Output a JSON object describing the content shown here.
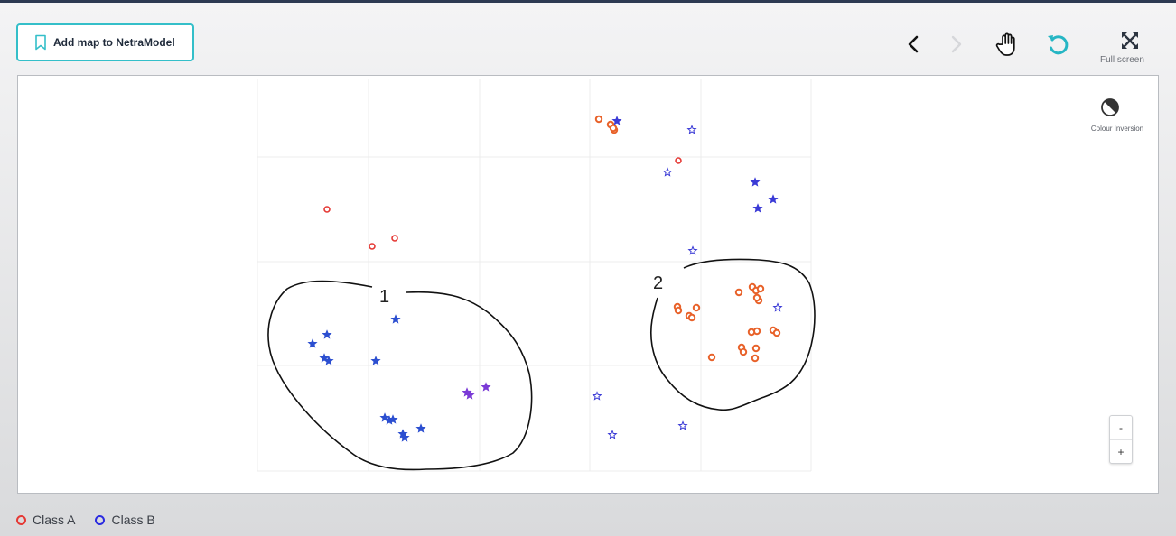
{
  "toolbar": {
    "add_map_label": "Add map to NetraModel",
    "full_screen_label": "Full screen"
  },
  "map": {
    "colour_inversion_label": "Colour Inversion",
    "zoom_out_label": "-",
    "zoom_in_label": "+",
    "region_labels": [
      "1",
      "2"
    ]
  },
  "legend": {
    "items": [
      {
        "label": "Class A",
        "color": "#e53935"
      },
      {
        "label": "Class B",
        "color": "#2b2be0"
      }
    ]
  },
  "colors": {
    "accent": "#34bfc9",
    "class_a_fill": "#e8622a",
    "class_b_star": "#3a3ad6"
  }
}
